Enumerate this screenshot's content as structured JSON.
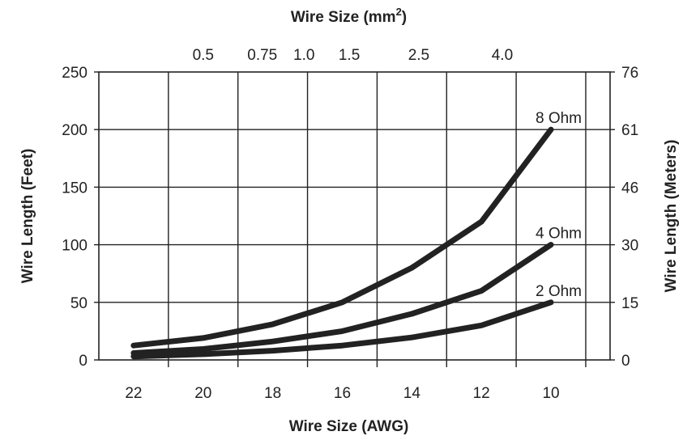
{
  "chart_data": {
    "type": "line",
    "title": "",
    "xlabel": "Wire Size (AWG)",
    "top_xlabel_main": "Wire Size (mm",
    "top_xlabel_sup": "2",
    "top_xlabel_close": ")",
    "ylabel_left": "Wire Length (Feet)",
    "ylabel_right": "Wire Length (Meters)",
    "x": [
      22,
      20,
      18,
      16,
      14,
      12,
      10
    ],
    "x_ticks": [
      "22",
      "20",
      "18",
      "16",
      "14",
      "12",
      "10"
    ],
    "xlim": [
      23,
      8.3
    ],
    "ylim": [
      0,
      250
    ],
    "y_ticks_left": [
      "0",
      "50",
      "100",
      "150",
      "200",
      "250"
    ],
    "y_ticks_right": [
      "0",
      "15",
      "30",
      "46",
      "61",
      "76"
    ],
    "top_ticks": [
      {
        "label": "0.5",
        "awg": 20
      },
      {
        "label": "0.75",
        "awg": 18.3
      },
      {
        "label": "1.0",
        "awg": 17.1
      },
      {
        "label": "1.5",
        "awg": 15.8
      },
      {
        "label": "2.5",
        "awg": 13.8
      },
      {
        "label": "4.0",
        "awg": 11.4
      }
    ],
    "grid": true,
    "series": [
      {
        "name": "8 Ohm",
        "x": [
          22,
          20,
          18,
          16,
          14,
          12,
          10
        ],
        "values": [
          12.5,
          19,
          31,
          50,
          80,
          120,
          200
        ]
      },
      {
        "name": "4 Ohm",
        "x": [
          22,
          20,
          18,
          16,
          14,
          12,
          10
        ],
        "values": [
          6,
          9.5,
          16,
          25,
          40,
          60,
          100
        ]
      },
      {
        "name": "2 Ohm",
        "x": [
          22,
          20,
          18,
          16,
          14,
          12,
          10
        ],
        "values": [
          3,
          5,
          8,
          12.5,
          19.5,
          30,
          50
        ]
      }
    ],
    "colors": {
      "line": "#222222",
      "grid": "#222222",
      "background": "#ffffff"
    }
  }
}
